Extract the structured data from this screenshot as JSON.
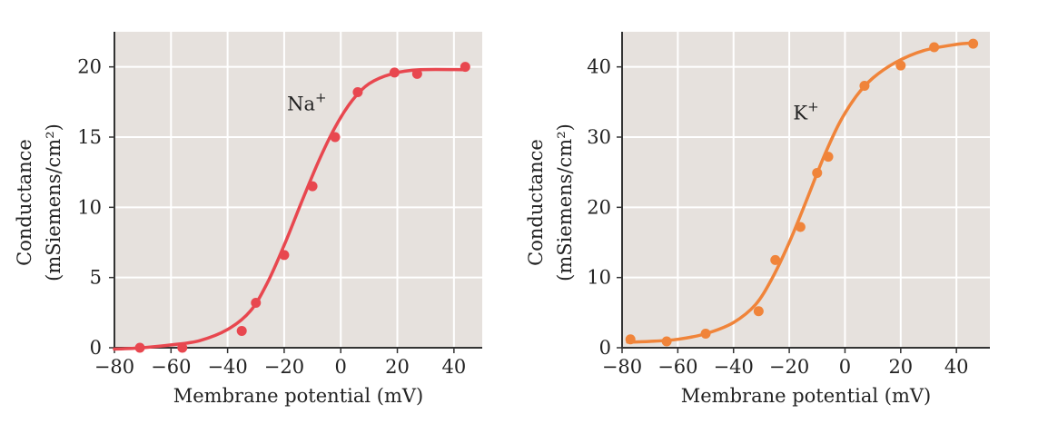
{
  "chart_data": [
    {
      "type": "scatter",
      "xlabel": "Membrane potential (mV)",
      "ylabel_lines": [
        "Conductance",
        "(mSiemens/cm²)"
      ],
      "xlim": [
        -80,
        50
      ],
      "ylim": [
        0,
        22.5
      ],
      "xticks": [
        -80,
        -60,
        -40,
        -20,
        0,
        20,
        40
      ],
      "xtick_labels": [
        "−80",
        "−60",
        "−40",
        "−20",
        "0",
        "20",
        "40"
      ],
      "yticks": [
        0,
        5,
        10,
        15,
        20
      ],
      "ytick_labels": [
        "0",
        "5",
        "10",
        "15",
        "20"
      ],
      "grid": true,
      "annotation": {
        "base": "Na",
        "sup": "+",
        "x": -12,
        "y": 16.9
      },
      "color": "#e8474f",
      "background": "#e6e1dd",
      "series": [
        {
          "points": [
            {
              "x": -71,
              "y": 0.0
            },
            {
              "x": -56,
              "y": 0.0
            },
            {
              "x": -35,
              "y": 1.2
            },
            {
              "x": -30,
              "y": 3.2
            },
            {
              "x": -20,
              "y": 6.6
            },
            {
              "x": -10,
              "y": 11.5
            },
            {
              "x": -2,
              "y": 15.0
            },
            {
              "x": 6,
              "y": 18.2
            },
            {
              "x": 19,
              "y": 19.6
            },
            {
              "x": 27,
              "y": 19.5
            },
            {
              "x": 44,
              "y": 20.0
            }
          ],
          "curve": [
            {
              "x": -80,
              "y": -0.1
            },
            {
              "x": -70,
              "y": 0.0
            },
            {
              "x": -60,
              "y": 0.2
            },
            {
              "x": -50,
              "y": 0.5
            },
            {
              "x": -40,
              "y": 1.3
            },
            {
              "x": -32,
              "y": 2.6
            },
            {
              "x": -26,
              "y": 4.6
            },
            {
              "x": -20,
              "y": 7.3
            },
            {
              "x": -14,
              "y": 10.3
            },
            {
              "x": -8,
              "y": 13.2
            },
            {
              "x": -2,
              "y": 15.7
            },
            {
              "x": 4,
              "y": 17.6
            },
            {
              "x": 10,
              "y": 18.8
            },
            {
              "x": 18,
              "y": 19.5
            },
            {
              "x": 28,
              "y": 19.8
            },
            {
              "x": 44,
              "y": 19.8
            }
          ]
        }
      ]
    },
    {
      "type": "scatter",
      "xlabel": "Membrane potential (mV)",
      "ylabel_lines": [
        "Conductance",
        "(mSiemens/cm²)"
      ],
      "xlim": [
        -80,
        52
      ],
      "ylim": [
        0,
        45
      ],
      "xticks": [
        -80,
        -60,
        -40,
        -20,
        0,
        20,
        40
      ],
      "xtick_labels": [
        "−80",
        "−60",
        "−40",
        "−20",
        "0",
        "20",
        "40"
      ],
      "yticks": [
        0,
        10,
        20,
        30,
        40
      ],
      "ytick_labels": [
        "0",
        "10",
        "20",
        "30",
        "40"
      ],
      "grid": true,
      "annotation": {
        "base": "K",
        "sup": "+",
        "x": -14,
        "y": 32.5
      },
      "color": "#f0843a",
      "background": "#e6e1dd",
      "series": [
        {
          "points": [
            {
              "x": -77,
              "y": 1.2
            },
            {
              "x": -64,
              "y": 0.9
            },
            {
              "x": -50,
              "y": 2.0
            },
            {
              "x": -31,
              "y": 5.2
            },
            {
              "x": -25,
              "y": 12.5
            },
            {
              "x": -16,
              "y": 17.2
            },
            {
              "x": -10,
              "y": 24.9
            },
            {
              "x": -6,
              "y": 27.2
            },
            {
              "x": 7,
              "y": 37.3
            },
            {
              "x": 20,
              "y": 40.2
            },
            {
              "x": 32,
              "y": 42.8
            },
            {
              "x": 46,
              "y": 43.3
            }
          ],
          "curve": [
            {
              "x": -78,
              "y": 0.8
            },
            {
              "x": -70,
              "y": 0.9
            },
            {
              "x": -60,
              "y": 1.2
            },
            {
              "x": -50,
              "y": 2.0
            },
            {
              "x": -40,
              "y": 3.6
            },
            {
              "x": -32,
              "y": 6.2
            },
            {
              "x": -26,
              "y": 10.0
            },
            {
              "x": -20,
              "y": 15.0
            },
            {
              "x": -14,
              "y": 20.8
            },
            {
              "x": -8,
              "y": 26.8
            },
            {
              "x": -2,
              "y": 32.0
            },
            {
              "x": 4,
              "y": 35.8
            },
            {
              "x": 10,
              "y": 38.4
            },
            {
              "x": 18,
              "y": 40.6
            },
            {
              "x": 28,
              "y": 42.3
            },
            {
              "x": 40,
              "y": 43.2
            },
            {
              "x": 46,
              "y": 43.4
            }
          ]
        }
      ]
    }
  ]
}
